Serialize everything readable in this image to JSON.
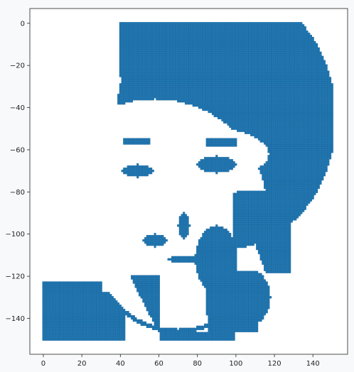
{
  "chart_data": {
    "type": "scatter",
    "title": "",
    "xlabel": "",
    "ylabel": "",
    "xlim": [
      -7,
      158
    ],
    "ylim": [
      -157,
      7
    ],
    "x_ticks": [
      0,
      20,
      40,
      60,
      80,
      100,
      120,
      140
    ],
    "y_ticks": [
      0,
      -20,
      -40,
      -60,
      -80,
      -100,
      -120,
      -140
    ],
    "x_tick_labels": [
      "0",
      "20",
      "40",
      "60",
      "80",
      "100",
      "120",
      "140"
    ],
    "y_tick_labels": [
      "0",
      "−20",
      "−40",
      "−60",
      "−80",
      "−100",
      "−120",
      "−140"
    ],
    "grid": false,
    "legend": "none",
    "marker": "square",
    "series_color": "#1f77b4",
    "points_description_regions": {
      "hair_outline_top": [
        [
          40,
          0
        ],
        [
          60,
          0
        ],
        [
          100,
          0
        ],
        [
          125,
          0
        ],
        [
          135,
          -5
        ],
        [
          145,
          -15
        ],
        [
          150,
          -30
        ],
        [
          152,
          -50
        ],
        [
          150,
          -75
        ],
        [
          142,
          -90
        ],
        [
          130,
          -95
        ],
        [
          110,
          -100
        ],
        [
          105,
          -110
        ],
        [
          95,
          -125
        ],
        [
          85,
          -130
        ],
        [
          70,
          -135
        ],
        [
          60,
          -140
        ],
        [
          55,
          -150
        ],
        [
          45,
          -140
        ],
        [
          35,
          -122
        ],
        [
          30,
          -130
        ],
        [
          0,
          -125
        ],
        [
          0,
          -150
        ],
        [
          112,
          -150
        ]
      ],
      "eye_left": [
        [
          42,
          -68
        ],
        [
          50,
          -67
        ],
        [
          55,
          -70
        ],
        [
          50,
          -73
        ],
        [
          44,
          -72
        ]
      ],
      "eye_right": [
        [
          82,
          -66
        ],
        [
          90,
          -64
        ],
        [
          98,
          -68
        ],
        [
          92,
          -72
        ],
        [
          85,
          -70
        ]
      ],
      "mouth": [
        [
          65,
          -110
        ],
        [
          75,
          -112
        ],
        [
          85,
          -113
        ],
        [
          92,
          -112
        ]
      ],
      "face_region_x_range": [
        10,
        130
      ],
      "face_region_y_range": [
        -150,
        0
      ]
    }
  }
}
